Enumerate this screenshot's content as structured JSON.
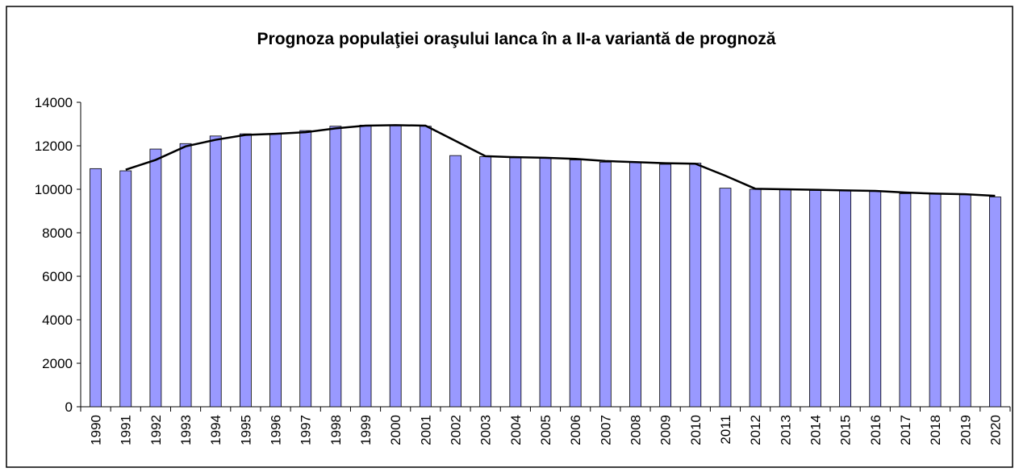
{
  "chart_data": {
    "type": "bar",
    "title": "Prognoza populaţiei oraşului Ianca în a II-a variantă de prognoză",
    "categories": [
      "1990",
      "1991",
      "1992",
      "1993",
      "1994",
      "1995",
      "1996",
      "1997",
      "1998",
      "1999",
      "2000",
      "2001",
      "2002",
      "2003",
      "2004",
      "2005",
      "2006",
      "2007",
      "2008",
      "2009",
      "2010",
      "2011",
      "2012",
      "2013",
      "2014",
      "2015",
      "2016",
      "2017",
      "2018",
      "2019",
      "2020"
    ],
    "series": [
      {
        "color": "#9999ff",
        "values": [
          10950,
          10850,
          11850,
          12100,
          12450,
          12550,
          12550,
          12700,
          12900,
          12950,
          12950,
          12900,
          11550,
          11500,
          11450,
          11450,
          11350,
          11250,
          11250,
          11150,
          11200,
          10050,
          10000,
          10000,
          9950,
          9950,
          9900,
          9800,
          9800,
          9750,
          9650
        ]
      },
      {
        "type": "line",
        "color": "#000000",
        "values": [
          null,
          10900,
          11350,
          11975,
          12275,
          12500,
          12550,
          12625,
          12800,
          12925,
          12950,
          12925,
          12225,
          11525,
          11475,
          11450,
          11400,
          11300,
          11250,
          11200,
          11175,
          10625,
          10025,
          10000,
          9975,
          9950,
          9925,
          9850,
          9800,
          9775,
          9700
        ]
      }
    ],
    "ylim": [
      0,
      14000
    ],
    "yticks": [
      0,
      2000,
      4000,
      6000,
      8000,
      10000,
      12000,
      14000
    ]
  }
}
